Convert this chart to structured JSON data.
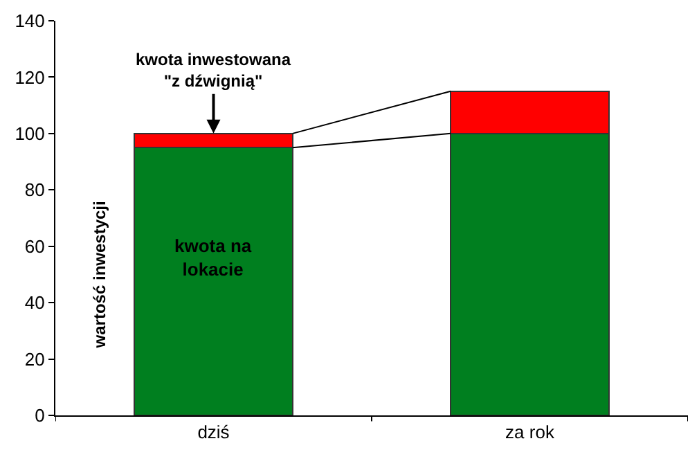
{
  "chart_data": {
    "type": "bar",
    "stacked": true,
    "categories": [
      "dziś",
      "za rok"
    ],
    "series": [
      {
        "color": "#007f1f",
        "values": [
          95,
          100
        ]
      },
      {
        "color": "#ff0000",
        "values": [
          5,
          15
        ]
      }
    ],
    "ylim": [
      0,
      140
    ],
    "yticks": [
      0,
      20,
      40,
      60,
      80,
      100,
      120,
      140
    ],
    "annotations": [
      {
        "text": "kwota inwestowana\n\"z dźwignią\"",
        "x": "dziś",
        "y": 100
      },
      "kwota na\nlokacie",
      "wartość inwestycji"
    ]
  }
}
